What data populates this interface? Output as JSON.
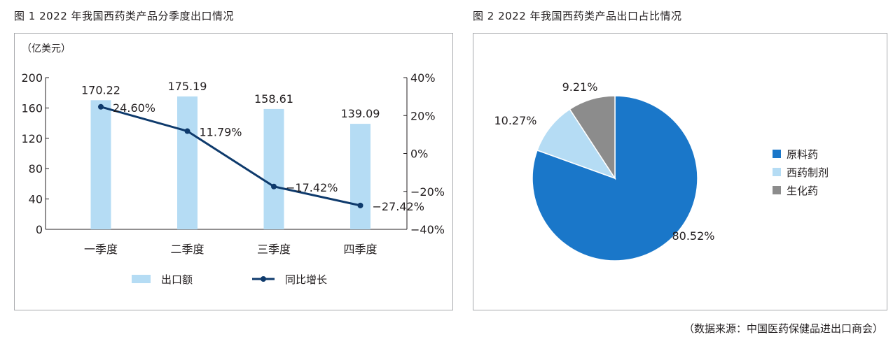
{
  "chart_data": [
    {
      "type": "bar",
      "title": "图 1   2022 年我国西药类产品分季度出口情况",
      "ylabel": "（亿美元）",
      "categories": [
        "一季度",
        "二季度",
        "三季度",
        "四季度"
      ],
      "ylim": [
        0,
        200
      ],
      "yticks": [
        "0",
        "40",
        "80",
        "120",
        "160",
        "200"
      ],
      "y2lim": [
        -40,
        40
      ],
      "y2ticks": [
        "−40%",
        "−20%",
        "0%",
        "20%",
        "40%"
      ],
      "series": [
        {
          "name": "出口额",
          "type": "bar",
          "color": "#b5dcf4",
          "values": [
            170.22,
            175.19,
            158.61,
            139.09
          ],
          "labels": [
            "170.22",
            "175.19",
            "158.61",
            "139.09"
          ]
        },
        {
          "name": "同比增长",
          "type": "line",
          "axis": "right",
          "color": "#0e3a6c",
          "values": [
            24.6,
            11.79,
            -17.42,
            -27.42
          ],
          "labels": [
            "24.60%",
            "11.79%",
            "−17.42%",
            "−27.42%"
          ]
        }
      ],
      "legend": "bottom",
      "grid": false
    },
    {
      "type": "pie",
      "title": "图 2   2022 年我国西药类产品出口占比情况",
      "categories": [
        "原料药",
        "西药制剂",
        "生化药"
      ],
      "values": [
        80.52,
        10.27,
        9.21
      ],
      "labels": [
        "80.52%",
        "10.27%",
        "9.21%"
      ],
      "colors": [
        "#1a77c9",
        "#b5dcf4",
        "#8c8c8c"
      ],
      "legend": "right"
    }
  ],
  "source": "（数据来源：中国医药保健品进出口商会）"
}
